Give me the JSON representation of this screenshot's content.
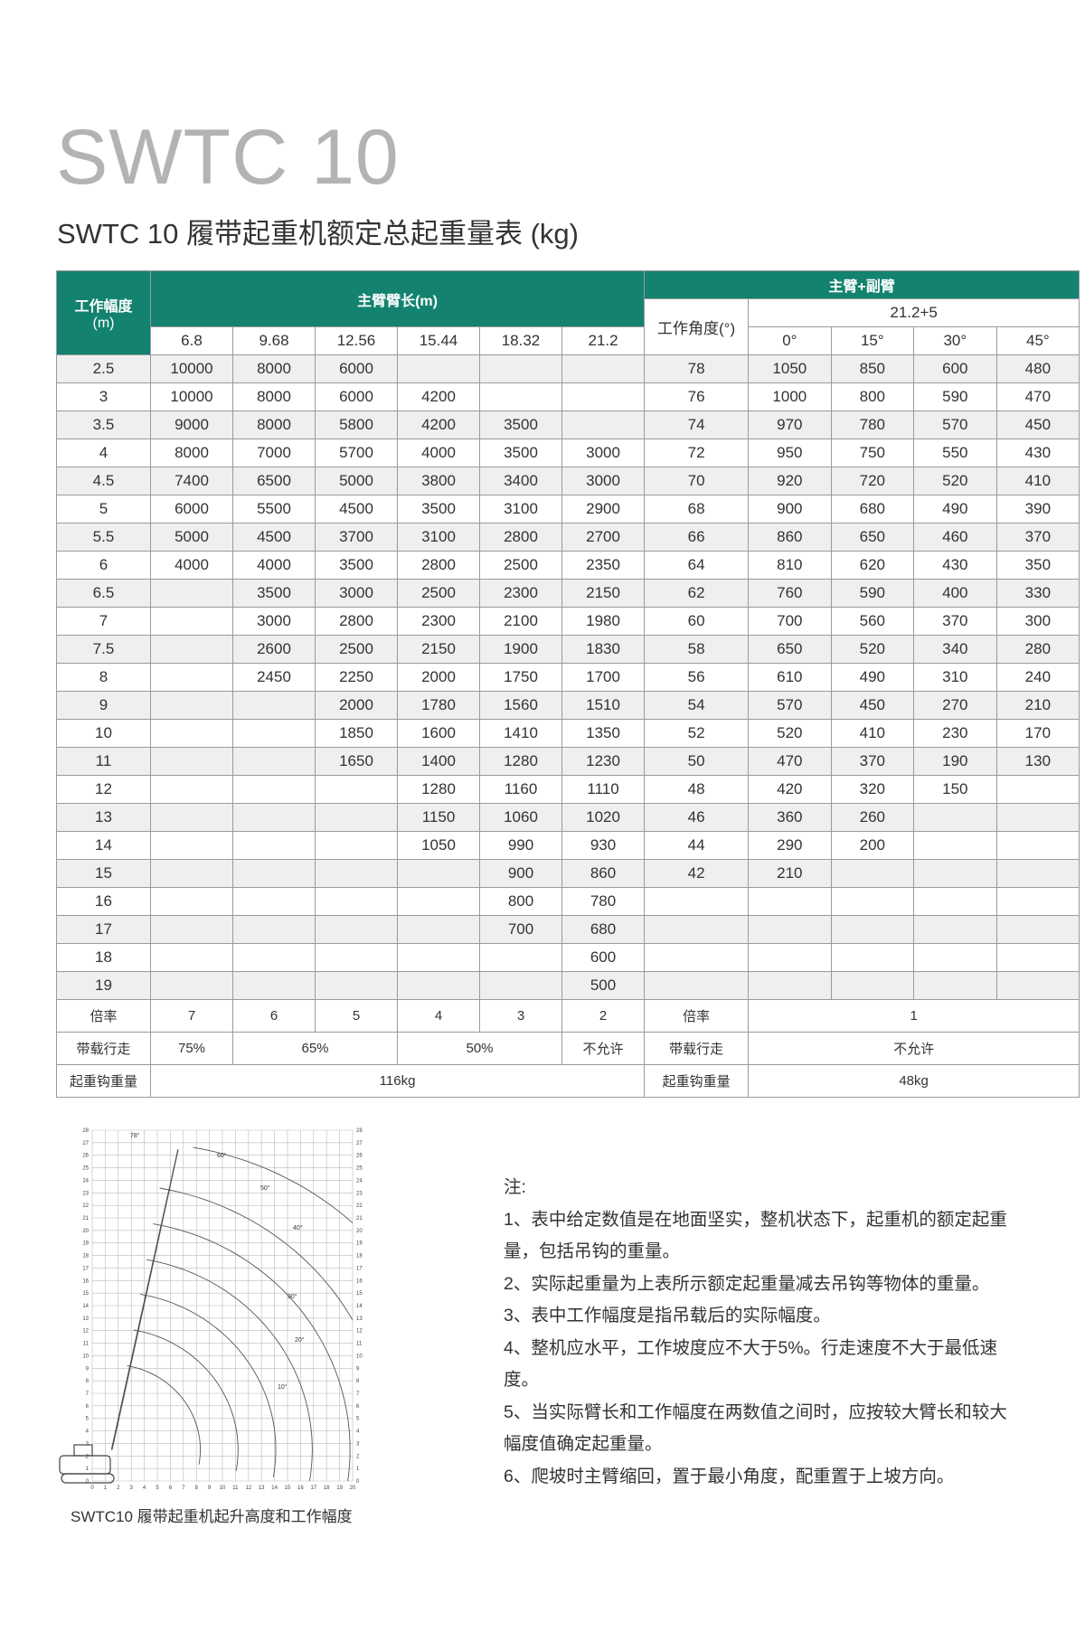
{
  "header": {
    "model": "SWTC 10",
    "title": "SWTC 10 履带起重机额定总起重量表 (kg)"
  },
  "table": {
    "radius_label": "工作幅度",
    "radius_unit": "(m)",
    "main_boom_label": "主臂臂长(m)",
    "boom_lengths": [
      6.8,
      9.68,
      12.56,
      15.44,
      18.32,
      21.2
    ],
    "combo_label": "主臂+副臂",
    "combo_length": "21.2+5",
    "angle_label": "工作角度(°)",
    "offsets": [
      "0°",
      "15°",
      "30°",
      "45°"
    ],
    "rows": [
      [
        2.5,
        10000,
        8000,
        6000,
        null,
        null,
        null,
        78,
        1050,
        850,
        600,
        480
      ],
      [
        3,
        10000,
        8000,
        6000,
        4200,
        null,
        null,
        76,
        1000,
        800,
        590,
        470
      ],
      [
        3.5,
        9000,
        8000,
        5800,
        4200,
        3500,
        null,
        74,
        970,
        780,
        570,
        450
      ],
      [
        4,
        8000,
        7000,
        5700,
        4000,
        3500,
        3000,
        72,
        950,
        750,
        550,
        430
      ],
      [
        4.5,
        7400,
        6500,
        5000,
        3800,
        3400,
        3000,
        70,
        920,
        720,
        520,
        410
      ],
      [
        5,
        6000,
        5500,
        4500,
        3500,
        3100,
        2900,
        68,
        900,
        680,
        490,
        390
      ],
      [
        5.5,
        5000,
        4500,
        3700,
        3100,
        2800,
        2700,
        66,
        860,
        650,
        460,
        370
      ],
      [
        6,
        4000,
        4000,
        3500,
        2800,
        2500,
        2350,
        64,
        810,
        620,
        430,
        350
      ],
      [
        6.5,
        null,
        3500,
        3000,
        2500,
        2300,
        2150,
        62,
        760,
        590,
        400,
        330
      ],
      [
        7,
        null,
        3000,
        2800,
        2300,
        2100,
        1980,
        60,
        700,
        560,
        370,
        300
      ],
      [
        7.5,
        null,
        2600,
        2500,
        2150,
        1900,
        1830,
        58,
        650,
        520,
        340,
        280
      ],
      [
        8,
        null,
        2450,
        2250,
        2000,
        1750,
        1700,
        56,
        610,
        490,
        310,
        240
      ],
      [
        9,
        null,
        null,
        2000,
        1780,
        1560,
        1510,
        54,
        570,
        450,
        270,
        210
      ],
      [
        10,
        null,
        null,
        1850,
        1600,
        1410,
        1350,
        52,
        520,
        410,
        230,
        170
      ],
      [
        11,
        null,
        null,
        1650,
        1400,
        1280,
        1230,
        50,
        470,
        370,
        190,
        130
      ],
      [
        12,
        null,
        null,
        null,
        1280,
        1160,
        1110,
        48,
        420,
        320,
        150,
        null
      ],
      [
        13,
        null,
        null,
        null,
        1150,
        1060,
        1020,
        46,
        360,
        260,
        null,
        null
      ],
      [
        14,
        null,
        null,
        null,
        1050,
        990,
        930,
        44,
        290,
        200,
        null,
        null
      ],
      [
        15,
        null,
        null,
        null,
        null,
        900,
        860,
        42,
        210,
        null,
        null,
        null
      ],
      [
        16,
        null,
        null,
        null,
        null,
        800,
        780,
        null,
        null,
        null,
        null,
        null
      ],
      [
        17,
        null,
        null,
        null,
        null,
        700,
        680,
        null,
        null,
        null,
        null,
        null
      ],
      [
        18,
        null,
        null,
        null,
        null,
        null,
        600,
        null,
        null,
        null,
        null,
        null
      ],
      [
        19,
        null,
        null,
        null,
        null,
        null,
        500,
        null,
        null,
        null,
        null,
        null
      ]
    ],
    "ratio": {
      "label": "倍率",
      "values": [
        7,
        6,
        5,
        4,
        3,
        2
      ],
      "combo_label": "倍率",
      "combo_value": 1
    },
    "travel": {
      "label": "带载行走",
      "values": [
        "75%",
        "65%",
        "50%",
        "不允许"
      ],
      "combo_label": "带载行走",
      "combo_value": "不允许"
    },
    "hook": {
      "label": "起重钩重量",
      "value": "116kg",
      "combo_label": "起重钩重量",
      "combo_value": "48kg"
    }
  },
  "diagram": {
    "x_ticks": [
      0,
      1,
      2,
      3,
      4,
      5,
      6,
      7,
      8,
      9,
      10,
      11,
      12,
      13,
      14,
      15,
      16,
      17,
      18,
      19,
      20
    ],
    "y_ticks": [
      0,
      1,
      2,
      3,
      4,
      5,
      6,
      7,
      8,
      9,
      10,
      11,
      12,
      13,
      14,
      15,
      16,
      17,
      18,
      19,
      20,
      21,
      22,
      23,
      24,
      25,
      26,
      27,
      28
    ],
    "angle_labels": [
      "78°",
      "60°",
      "50°",
      "40°",
      "30°",
      "20°",
      "10°"
    ],
    "caption": "SWTC10 履带起重机起升高度和工作幅度"
  },
  "notes": {
    "title": "注:",
    "items": [
      "1、表中给定数值是在地面坚实，整机状态下，起重机的额定起重量，包括吊钩的重量。",
      "2、实际起重量为上表所示额定起重量减去吊钩等物体的重量。",
      "3、表中工作幅度是指吊载后的实际幅度。",
      "4、整机应水平，工作坡度应不大于5%。行走速度不大于最低速度。",
      "5、当实际臂长和工作幅度在两数值之间时，应按较大臂长和较大幅度值确定起重量。",
      "6、爬坡时主臂缩回，置于最小角度，配重置于上坡方向。"
    ]
  }
}
